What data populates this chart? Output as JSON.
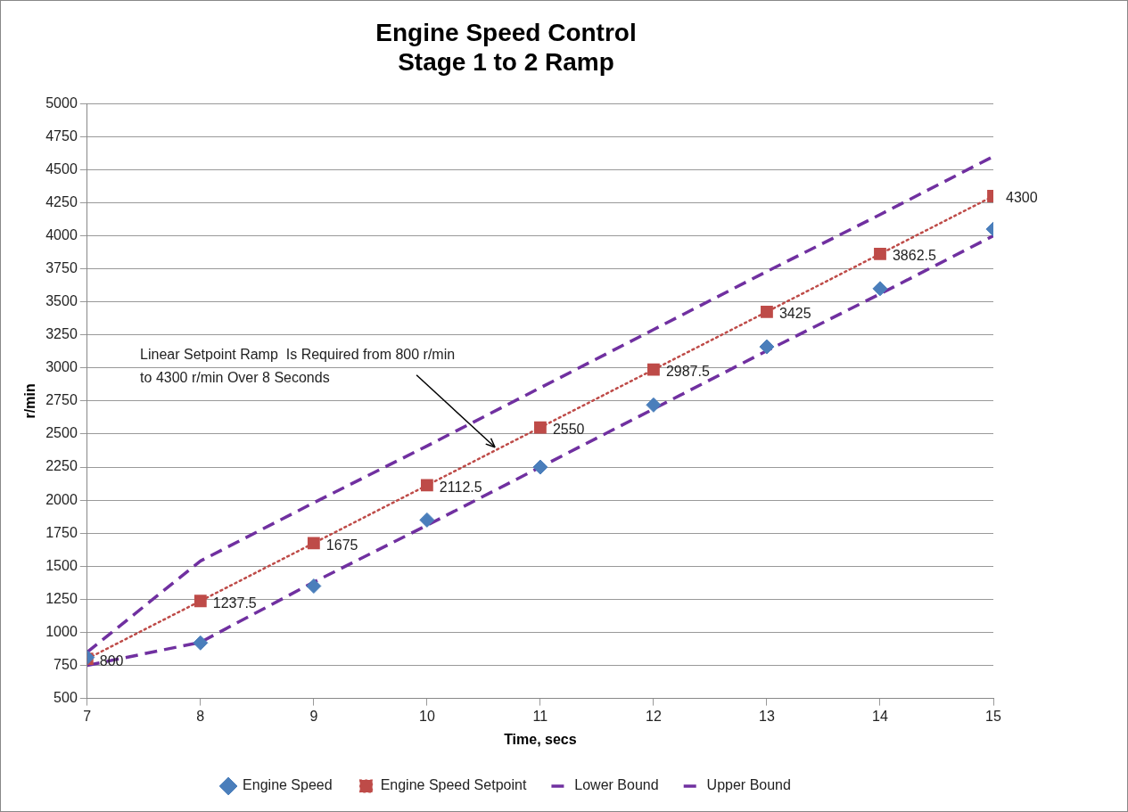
{
  "chart_data": {
    "type": "line",
    "title": "Engine Speed Control",
    "subtitle": "Stage 1 to 2 Ramp",
    "xlabel": "Time, secs",
    "ylabel": "r/min",
    "x": [
      7,
      8,
      9,
      10,
      11,
      12,
      13,
      14,
      15
    ],
    "series": [
      {
        "name": "Engine Speed",
        "type": "scatter",
        "color": "#4a7ebb",
        "marker": "diamond",
        "values": [
          810,
          920,
          1350,
          1850,
          2250,
          2720,
          3160,
          3600,
          4050
        ]
      },
      {
        "name": "Engine Speed Setpoint",
        "color": "#be4b48",
        "marker": "square",
        "line_style": "dotted",
        "values": [
          800,
          1237.5,
          1675,
          2112.5,
          2550,
          2987.5,
          3425,
          3862.5,
          4300
        ],
        "value_labels": [
          "800",
          "1237.5",
          "1675",
          "2112.5",
          "2550",
          "2987.5",
          "3425",
          "3862.5",
          "4300"
        ]
      },
      {
        "name": "Lower Bound",
        "color": "#7030a0",
        "marker": "none",
        "line_style": "dashed",
        "values": [
          750,
          925,
          1380,
          1810,
          2250,
          2690,
          3130,
          3560,
          4000
        ]
      },
      {
        "name": "Upper Bound",
        "color": "#7030a0",
        "marker": "none",
        "line_style": "dashed",
        "values": [
          850,
          1540,
          1980,
          2410,
          2850,
          3290,
          3730,
          4160,
          4600
        ]
      }
    ],
    "xlim": [
      7,
      15
    ],
    "xticks": [
      7,
      8,
      9,
      10,
      11,
      12,
      13,
      14,
      15
    ],
    "ylim": [
      500,
      5000
    ],
    "yticks": [
      500,
      750,
      1000,
      1250,
      1500,
      1750,
      2000,
      2250,
      2500,
      2750,
      3000,
      3250,
      3500,
      3750,
      4000,
      4250,
      4500,
      4750,
      5000
    ],
    "grid": "y",
    "legend": "bottom",
    "annotations": [
      {
        "text": "Linear Setpoint Ramp  Is Required from 800 r/min to 4300 r/min Over 8 Seconds",
        "x": 10.6,
        "y": 2400
      }
    ]
  }
}
